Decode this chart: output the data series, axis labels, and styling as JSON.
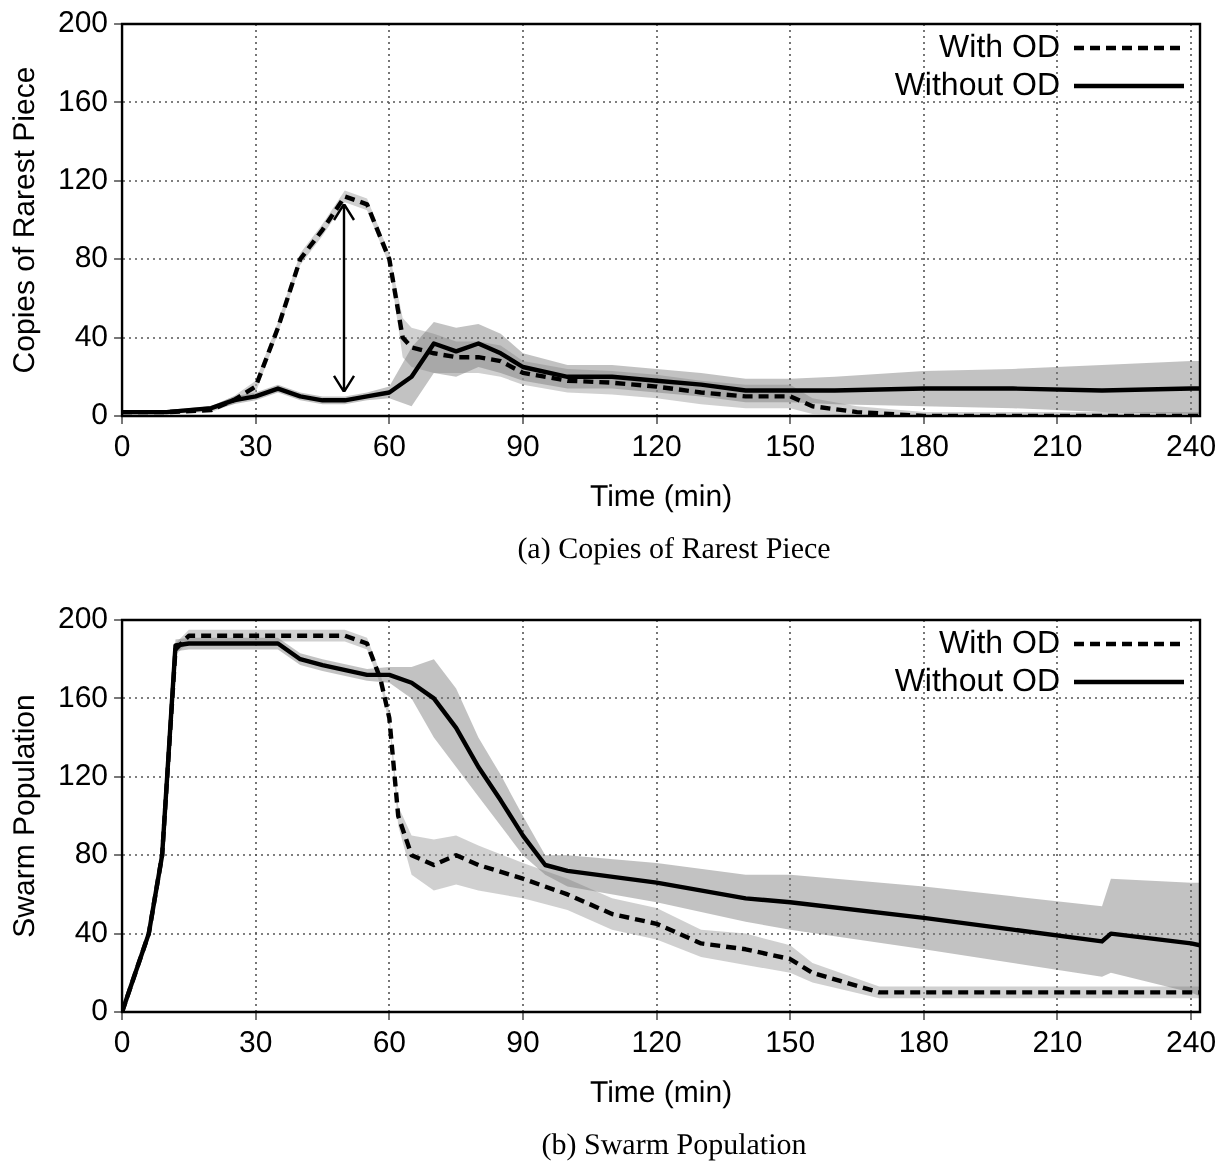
{
  "chart_data": [
    {
      "type": "line",
      "title": "(a) Copies of Rarest Piece",
      "xlabel": "Time (min)",
      "ylabel": "Copies of Rarest Piece",
      "xlim": [
        0,
        242
      ],
      "xticks": [
        0,
        30,
        60,
        90,
        120,
        150,
        180,
        210,
        240
      ],
      "ylim": [
        0,
        200
      ],
      "yticks": [
        0,
        40,
        80,
        120,
        160,
        200
      ],
      "grid": true,
      "legend": "top right",
      "marker": "none",
      "series": [
        {
          "name": "With OD",
          "color": "#000000",
          "line_style": "dashed",
          "x": [
            0,
            10,
            20,
            25,
            30,
            35,
            40,
            45,
            50,
            55,
            60,
            63,
            65,
            70,
            75,
            80,
            85,
            90,
            100,
            110,
            120,
            130,
            140,
            150,
            155,
            165,
            180,
            200,
            220,
            240,
            242
          ],
          "values": [
            2,
            2,
            3,
            8,
            15,
            45,
            80,
            95,
            112,
            108,
            80,
            40,
            35,
            32,
            30,
            30,
            28,
            22,
            18,
            17,
            15,
            12,
            10,
            10,
            5,
            2,
            0,
            0,
            0,
            0,
            0
          ],
          "lower": [
            1,
            1,
            2,
            6,
            12,
            42,
            77,
            92,
            109,
            105,
            77,
            30,
            25,
            22,
            22,
            22,
            20,
            16,
            12,
            11,
            9,
            6,
            4,
            4,
            1,
            0,
            0,
            0,
            0,
            0,
            0
          ],
          "upper": [
            3,
            3,
            5,
            10,
            18,
            48,
            83,
            98,
            115,
            111,
            83,
            50,
            45,
            42,
            38,
            38,
            36,
            28,
            24,
            23,
            21,
            18,
            16,
            16,
            9,
            5,
            2,
            2,
            2,
            2,
            2
          ]
        },
        {
          "name": "Without OD",
          "color": "#000000",
          "line_style": "solid",
          "x": [
            0,
            10,
            20,
            25,
            30,
            35,
            40,
            45,
            50,
            55,
            60,
            65,
            70,
            75,
            80,
            85,
            90,
            100,
            110,
            120,
            130,
            140,
            150,
            160,
            180,
            200,
            220,
            240,
            242
          ],
          "values": [
            2,
            2,
            4,
            8,
            10,
            14,
            10,
            8,
            8,
            10,
            12,
            20,
            37,
            33,
            37,
            32,
            25,
            20,
            20,
            18,
            16,
            13,
            13,
            13,
            14,
            14,
            13,
            14,
            14
          ],
          "lower": [
            1,
            1,
            3,
            6,
            8,
            12,
            8,
            6,
            6,
            8,
            9,
            5,
            22,
            20,
            25,
            22,
            18,
            14,
            14,
            12,
            10,
            7,
            7,
            6,
            5,
            4,
            2,
            1,
            1
          ],
          "upper": [
            3,
            3,
            5,
            10,
            12,
            16,
            12,
            10,
            10,
            12,
            15,
            35,
            48,
            45,
            47,
            42,
            32,
            26,
            26,
            24,
            22,
            19,
            19,
            20,
            23,
            24,
            26,
            28,
            28
          ]
        }
      ]
    },
    {
      "type": "line",
      "title": "(b) Swarm Population",
      "xlabel": "Time (min)",
      "ylabel": "Swarm Population",
      "xlim": [
        0,
        242
      ],
      "xticks": [
        0,
        30,
        60,
        90,
        120,
        150,
        180,
        210,
        240
      ],
      "ylim": [
        0,
        200
      ],
      "yticks": [
        0,
        40,
        80,
        120,
        160,
        200
      ],
      "grid": true,
      "legend": "top right",
      "marker": "none",
      "series": [
        {
          "name": "With OD",
          "color": "#000000",
          "line_style": "dashed",
          "x": [
            0,
            3,
            6,
            9,
            12,
            15,
            30,
            50,
            55,
            58,
            60,
            62,
            65,
            70,
            75,
            80,
            90,
            100,
            110,
            120,
            130,
            140,
            150,
            155,
            170,
            180,
            240,
            242
          ],
          "values": [
            0,
            20,
            40,
            80,
            185,
            192,
            192,
            192,
            188,
            170,
            150,
            100,
            80,
            75,
            80,
            75,
            68,
            60,
            50,
            45,
            35,
            32,
            27,
            20,
            10,
            10,
            10,
            10
          ],
          "lower": [
            0,
            18,
            37,
            76,
            182,
            189,
            189,
            189,
            185,
            167,
            147,
            95,
            70,
            62,
            65,
            62,
            58,
            52,
            42,
            37,
            28,
            24,
            20,
            15,
            7,
            7,
            7,
            7
          ],
          "upper": [
            0,
            22,
            43,
            84,
            188,
            195,
            195,
            195,
            191,
            173,
            153,
            105,
            90,
            88,
            90,
            85,
            76,
            68,
            58,
            53,
            42,
            40,
            34,
            25,
            13,
            13,
            13,
            13
          ]
        },
        {
          "name": "Without OD",
          "color": "#000000",
          "line_style": "solid",
          "x": [
            0,
            3,
            6,
            9,
            12,
            15,
            35,
            40,
            45,
            55,
            60,
            65,
            70,
            75,
            80,
            85,
            90,
            95,
            100,
            120,
            140,
            150,
            180,
            200,
            220,
            222,
            240,
            242
          ],
          "values": [
            0,
            20,
            40,
            80,
            187,
            188,
            188,
            180,
            177,
            172,
            172,
            168,
            160,
            145,
            125,
            108,
            90,
            75,
            72,
            66,
            58,
            56,
            48,
            42,
            36,
            40,
            35,
            34
          ],
          "lower": [
            0,
            18,
            37,
            76,
            184,
            185,
            185,
            177,
            174,
            169,
            168,
            160,
            140,
            125,
            110,
            95,
            80,
            70,
            64,
            56,
            46,
            42,
            32,
            25,
            18,
            20,
            10,
            8
          ],
          "upper": [
            0,
            22,
            43,
            84,
            190,
            191,
            191,
            183,
            180,
            175,
            176,
            176,
            180,
            165,
            140,
            121,
            100,
            80,
            80,
            76,
            70,
            70,
            64,
            59,
            54,
            68,
            66,
            66
          ]
        }
      ]
    }
  ]
}
